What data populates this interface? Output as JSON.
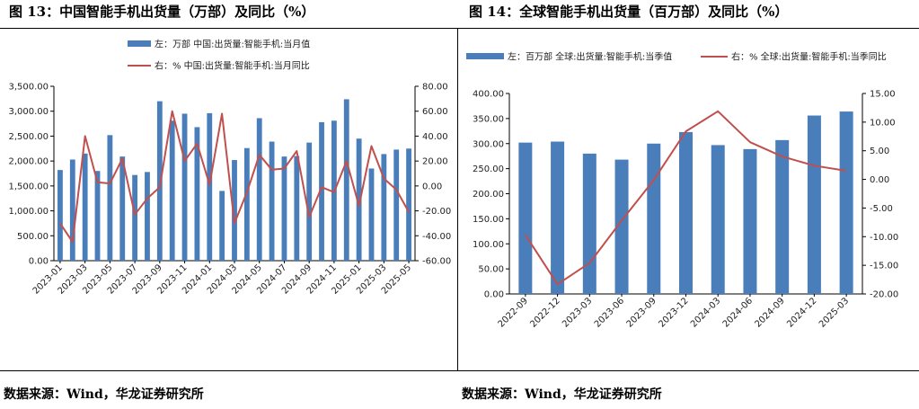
{
  "panels": [
    {
      "title": "图 13：中国智能手机出货量（万部）及同比（%）",
      "source": "数据来源：Wind，华龙证券研究所"
    },
    {
      "title": "图 14：全球智能手机出货量（百万部）及同比（%）",
      "source": "数据来源：Wind，华龙证券研究所"
    }
  ],
  "colors": {
    "bar": "#4a7ebb",
    "line": "#c0504d"
  },
  "chart_data": [
    {
      "type": "bar",
      "legend_position": "top",
      "categories": [
        "2023-01",
        "2023-02",
        "2023-03",
        "2023-04",
        "2023-05",
        "2023-06",
        "2023-07",
        "2023-08",
        "2023-09",
        "2023-10",
        "2023-11",
        "2023-12",
        "2024-01",
        "2024-02",
        "2024-03",
        "2024-04",
        "2024-05",
        "2024-06",
        "2024-07",
        "2024-08",
        "2024-09",
        "2024-10",
        "2024-11",
        "2024-12",
        "2025-01",
        "2025-02",
        "2025-03",
        "2025-04",
        "2025-05"
      ],
      "x_tick_labels": [
        "2023-01",
        "2023-03",
        "2023-05",
        "2023-07",
        "2023-09",
        "2023-11",
        "2024-01",
        "2024-03",
        "2024-05",
        "2024-07",
        "2024-09",
        "2024-11",
        "2025-01",
        "2025-03",
        "2025-05"
      ],
      "series": [
        {
          "name": "左：万部 中国:出货量:智能手机:当月值",
          "type": "bar",
          "axis": "left",
          "values": [
            1820,
            2030,
            2150,
            1800,
            2520,
            2090,
            1720,
            1780,
            3200,
            2810,
            2950,
            2680,
            2960,
            1400,
            2020,
            2260,
            2860,
            2390,
            2090,
            2100,
            2370,
            2780,
            2810,
            3240,
            2450,
            1850,
            2140,
            2230,
            2250
          ]
        },
        {
          "name": "右：% 中国:出货量:智能手机:当月同比",
          "type": "line",
          "axis": "right",
          "values": [
            -30,
            -45,
            40,
            3,
            2,
            22,
            -23,
            -10,
            -1,
            60,
            20,
            34,
            1,
            58,
            -30,
            -5,
            25,
            13,
            14,
            28,
            -25,
            -1,
            -5,
            20,
            -16,
            32,
            6,
            -3,
            -21
          ]
        }
      ],
      "y_left": {
        "min": 0,
        "max": 3500,
        "step": 500,
        "tick_labels": [
          "0.00",
          "500.00",
          "1,000.00",
          "1,500.00",
          "2,000.00",
          "2,500.00",
          "3,000.00",
          "3,500.00"
        ]
      },
      "y_right": {
        "min": -60,
        "max": 80,
        "step": 20,
        "tick_labels": [
          "-60.00",
          "-40.00",
          "-20.00",
          "0.00",
          "20.00",
          "40.00",
          "60.00",
          "80.00"
        ]
      }
    },
    {
      "type": "bar",
      "legend_position": "top",
      "categories": [
        "2022-09",
        "2022-12",
        "2023-03",
        "2023-06",
        "2023-09",
        "2023-12",
        "2024-03",
        "2024-06",
        "2024-09",
        "2024-12",
        "2025-03"
      ],
      "x_tick_labels": [
        "2022-09",
        "2022-12",
        "2023-03",
        "2023-06",
        "2023-09",
        "2023-12",
        "2024-03",
        "2024-06",
        "2024-09",
        "2024-12",
        "2025-03"
      ],
      "series": [
        {
          "name": "左：百万部 全球:出货量:智能手机:当季值",
          "type": "bar",
          "axis": "left",
          "values": [
            302,
            304,
            280,
            268,
            300,
            323,
            297,
            289,
            307,
            356,
            364
          ]
        },
        {
          "name": "右：% 全球:出货量:智能手机:当季同比",
          "type": "line",
          "axis": "right",
          "values": [
            -9.7,
            -18.3,
            -14.6,
            -7.2,
            -0.1,
            8.4,
            11.9,
            6.5,
            4.0,
            2.4,
            1.5
          ]
        }
      ],
      "y_left": {
        "min": 0,
        "max": 400,
        "step": 50,
        "tick_labels": [
          "0.00",
          "50.00",
          "100.00",
          "150.00",
          "200.00",
          "250.00",
          "300.00",
          "350.00",
          "400.00"
        ]
      },
      "y_right": {
        "min": -20,
        "max": 15,
        "step": 5,
        "tick_labels": [
          "-20.00",
          "-15.00",
          "-10.00",
          "-5.00",
          "0.00",
          "5.00",
          "10.00",
          "15.00"
        ]
      }
    }
  ]
}
